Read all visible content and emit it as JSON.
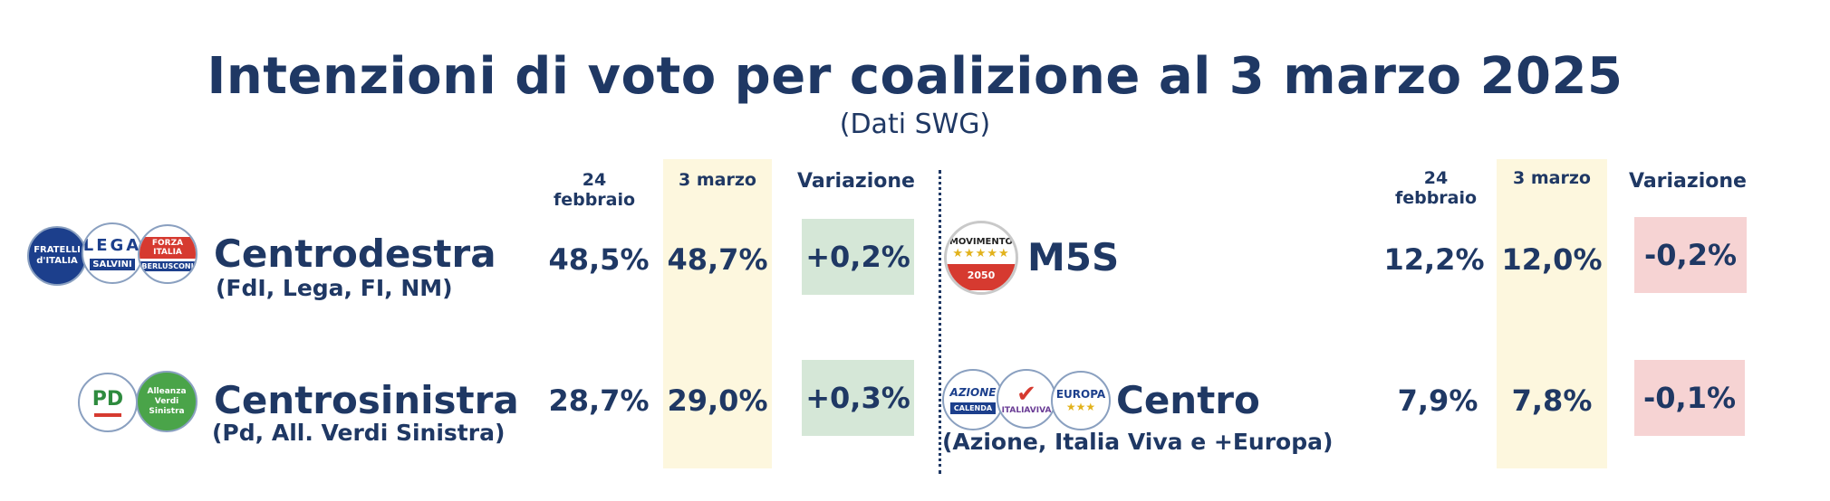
{
  "title": "Intenzioni di voto per coalizione al 3 marzo 2025",
  "subtitle": "(Dati SWG)",
  "chart_data": {
    "type": "table",
    "columns": [
      "24 febbraio",
      "3 marzo",
      "Variazione"
    ],
    "highlight_column": "3 marzo",
    "colors": {
      "text": "#1f3864",
      "highlight": "#fdf7de",
      "positive": "#d5e7d7",
      "negative": "#f6d3d3"
    },
    "rows": [
      {
        "name": "Centrodestra",
        "sub": "(FdI, Lega, FI, NM)",
        "feb24": "48,5%",
        "mar3": "48,7%",
        "change": "+0,2%",
        "trend": "positive"
      },
      {
        "name": "Centrosinistra",
        "sub": "(Pd, All. Verdi Sinistra)",
        "feb24": "28,7%",
        "mar3": "29,0%",
        "change": "+0,3%",
        "trend": "positive"
      },
      {
        "name": "M5S",
        "sub": "",
        "feb24": "12,2%",
        "mar3": "12,0%",
        "change": "-0,2%",
        "trend": "negative"
      },
      {
        "name": "Centro",
        "sub": "(Azione, Italia Viva e +Europa)",
        "feb24": "7,9%",
        "mar3": "7,8%",
        "change": "-0,1%",
        "trend": "negative"
      }
    ],
    "values_feb24": [
      48.5,
      28.7,
      12.2,
      7.9
    ],
    "values_mar3": [
      48.7,
      29.0,
      12.0,
      7.8
    ],
    "changes": [
      0.2,
      0.3,
      -0.2,
      -0.1
    ]
  },
  "logos": {
    "fdi": "FRATELLI d'ITALIA",
    "lega_top": "LEGA",
    "lega_bottom": "SALVINI",
    "fi_top": "FORZA ITALIA",
    "fi_bottom": "BERLUSCONI",
    "pd": "PD",
    "avs": "Alleanza Verdi Sinistra",
    "m5s": "MOVIMENTO",
    "m5s_year": "2050",
    "azione": "AZIONE",
    "azione_bottom": "CALENDA",
    "iv": "ITALIAVIVA",
    "europa": "EUROPA"
  }
}
